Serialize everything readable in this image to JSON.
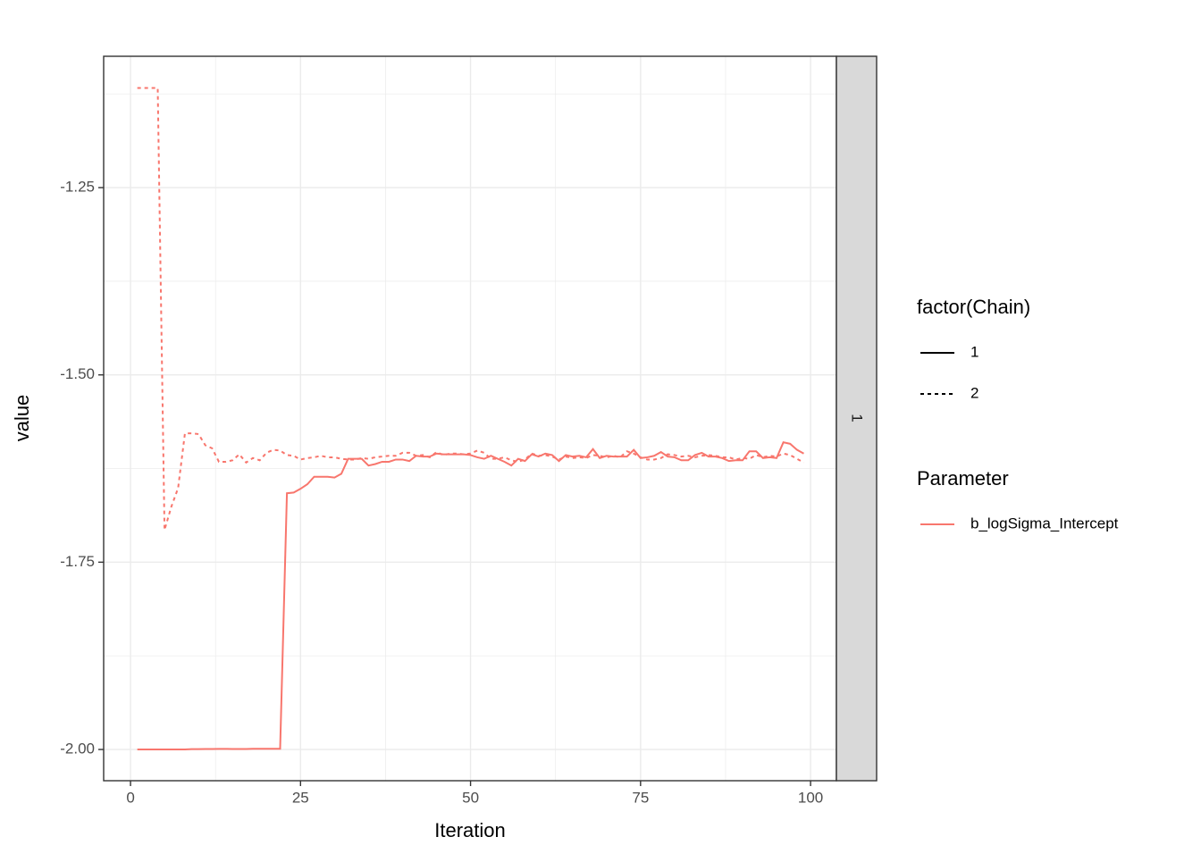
{
  "chart_data": {
    "type": "line",
    "x_label": "Iteration",
    "y_label": "value",
    "facet_label": "1",
    "x": [
      1,
      2,
      3,
      4,
      5,
      6,
      7,
      8,
      9,
      10,
      11,
      12,
      13,
      14,
      15,
      16,
      17,
      18,
      19,
      20,
      21,
      22,
      23,
      24,
      25,
      26,
      27,
      28,
      29,
      30,
      31,
      32,
      33,
      34,
      35,
      36,
      37,
      38,
      39,
      40,
      41,
      42,
      43,
      44,
      45,
      46,
      47,
      48,
      49,
      50,
      51,
      52,
      53,
      54,
      55,
      56,
      57,
      58,
      59,
      60,
      61,
      62,
      63,
      64,
      65,
      66,
      67,
      68,
      69,
      70,
      71,
      72,
      73,
      74,
      75,
      76,
      77,
      78,
      79,
      80,
      81,
      82,
      83,
      84,
      85,
      86,
      87,
      88,
      89,
      90,
      91,
      92,
      93,
      94,
      95,
      96,
      97,
      98,
      99
    ],
    "series": [
      {
        "name": "1",
        "linetype": "solid",
        "color": "#f8766d",
        "values": [
          -2.0,
          -2.0,
          -2.0,
          -2.0,
          -2.0,
          -2.0,
          -2.0,
          -2.0,
          -1.9995,
          -1.9995,
          -1.9993,
          -1.9993,
          -1.9992,
          -1.9992,
          -1.9993,
          -1.9993,
          -1.9993,
          -1.999,
          -1.999,
          -1.999,
          -1.999,
          -1.999,
          -1.658,
          -1.657,
          -1.652,
          -1.646,
          -1.636,
          -1.636,
          -1.636,
          -1.637,
          -1.632,
          -1.612,
          -1.612,
          -1.612,
          -1.621,
          -1.619,
          -1.616,
          -1.616,
          -1.613,
          -1.613,
          -1.615,
          -1.608,
          -1.609,
          -1.609,
          -1.605,
          -1.606,
          -1.606,
          -1.606,
          -1.606,
          -1.607,
          -1.61,
          -1.612,
          -1.608,
          -1.612,
          -1.616,
          -1.621,
          -1.612,
          -1.615,
          -1.606,
          -1.609,
          -1.605,
          -1.607,
          -1.615,
          -1.607,
          -1.609,
          -1.608,
          -1.61,
          -1.599,
          -1.611,
          -1.608,
          -1.609,
          -1.609,
          -1.609,
          -1.6,
          -1.611,
          -1.61,
          -1.608,
          -1.603,
          -1.609,
          -1.61,
          -1.614,
          -1.614,
          -1.607,
          -1.604,
          -1.609,
          -1.609,
          -1.611,
          -1.615,
          -1.614,
          -1.614,
          -1.602,
          -1.602,
          -1.611,
          -1.61,
          -1.611,
          -1.59,
          -1.592,
          -1.6,
          -1.605
        ]
      },
      {
        "name": "2",
        "linetype": "dashed",
        "color": "#f8766d",
        "values": [
          -1.117,
          -1.117,
          -1.117,
          -1.117,
          -1.707,
          -1.676,
          -1.651,
          -1.578,
          -1.578,
          -1.579,
          -1.594,
          -1.598,
          -1.616,
          -1.616,
          -1.614,
          -1.606,
          -1.617,
          -1.611,
          -1.614,
          -1.604,
          -1.6,
          -1.601,
          -1.607,
          -1.608,
          -1.613,
          -1.611,
          -1.61,
          -1.608,
          -1.61,
          -1.61,
          -1.612,
          -1.613,
          -1.613,
          -1.611,
          -1.612,
          -1.61,
          -1.609,
          -1.608,
          -1.608,
          -1.604,
          -1.604,
          -1.608,
          -1.607,
          -1.61,
          -1.603,
          -1.607,
          -1.605,
          -1.605,
          -1.606,
          -1.605,
          -1.601,
          -1.604,
          -1.612,
          -1.612,
          -1.61,
          -1.614,
          -1.616,
          -1.613,
          -1.605,
          -1.608,
          -1.607,
          -1.609,
          -1.613,
          -1.609,
          -1.611,
          -1.61,
          -1.611,
          -1.607,
          -1.608,
          -1.61,
          -1.608,
          -1.61,
          -1.602,
          -1.605,
          -1.61,
          -1.613,
          -1.613,
          -1.611,
          -1.606,
          -1.607,
          -1.609,
          -1.608,
          -1.61,
          -1.608,
          -1.607,
          -1.608,
          -1.61,
          -1.61,
          -1.613,
          -1.611,
          -1.612,
          -1.607,
          -1.61,
          -1.608,
          -1.609,
          -1.605,
          -1.607,
          -1.612,
          -1.617
        ]
      }
    ],
    "linetype_legend": {
      "title": "factor(Chain)"
    },
    "color_legend": {
      "title": "Parameter",
      "labels": [
        "b_logSigma_Intercept"
      ]
    },
    "xlim": [
      -3.95,
      103.8
    ],
    "ylim": [
      -2.0417,
      -1.0747
    ],
    "xticks": [
      0,
      25,
      50,
      75,
      100
    ],
    "yticks": [
      {
        "value": -2.0,
        "label": "-2.00"
      },
      -1.75,
      {
        "value": -1.5,
        "label": "-1.50"
      },
      -1.25
    ],
    "grid": true
  }
}
